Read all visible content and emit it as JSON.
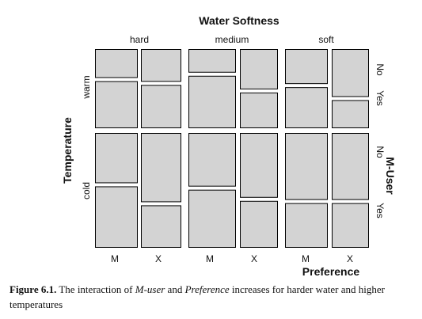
{
  "chart_data": {
    "type": "mosaic",
    "title": "Water Softness",
    "row_variable": "Temperature",
    "column_variable": "Preference",
    "inner_row_variable": "M-User",
    "softness_levels": [
      "hard",
      "medium",
      "soft"
    ],
    "temperature_levels": [
      "warm",
      "cold"
    ],
    "preference_levels": [
      "M",
      "X"
    ],
    "muser_levels": [
      "No",
      "Yes"
    ],
    "fill_color": "#d3d3d3",
    "stroke_color": "#000000",
    "cells": [
      {
        "softness": "hard",
        "temperature": "warm",
        "preference": "M",
        "no_share": 0.38
      },
      {
        "softness": "hard",
        "temperature": "warm",
        "preference": "X",
        "no_share": 0.43
      },
      {
        "softness": "hard",
        "temperature": "cold",
        "preference": "M",
        "no_share": 0.45
      },
      {
        "softness": "hard",
        "temperature": "cold",
        "preference": "X",
        "no_share": 0.62
      },
      {
        "softness": "medium",
        "temperature": "warm",
        "preference": "M",
        "no_share": 0.31
      },
      {
        "softness": "medium",
        "temperature": "warm",
        "preference": "X",
        "no_share": 0.53
      },
      {
        "softness": "medium",
        "temperature": "cold",
        "preference": "M",
        "no_share": 0.48
      },
      {
        "softness": "medium",
        "temperature": "cold",
        "preference": "X",
        "no_share": 0.58
      },
      {
        "softness": "soft",
        "temperature": "warm",
        "preference": "M",
        "no_share": 0.46
      },
      {
        "softness": "soft",
        "temperature": "warm",
        "preference": "X",
        "no_share": 0.63
      },
      {
        "softness": "soft",
        "temperature": "cold",
        "preference": "M",
        "no_share": 0.6
      },
      {
        "softness": "soft",
        "temperature": "cold",
        "preference": "X",
        "no_share": 0.6
      }
    ]
  },
  "caption": {
    "label": "Figure 6.1.",
    "p1": " The interaction of ",
    "term1": "M-user",
    "p2": " and ",
    "term2": "Preference",
    "p3": " increases for harder water and higher temperatures"
  }
}
